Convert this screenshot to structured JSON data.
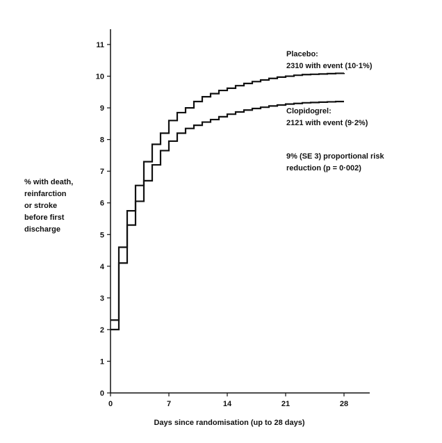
{
  "chart_data": {
    "type": "line",
    "title": "",
    "xlabel": "Days since randomisation (up to 28 days)",
    "ylabel": [
      "% with death,",
      "reinfarction",
      "or stroke",
      "before first",
      "discharge"
    ],
    "xlim": [
      0,
      30
    ],
    "ylim": [
      0,
      11.5
    ],
    "x_ticks": [
      0,
      7,
      14,
      21,
      28
    ],
    "y_ticks": [
      0,
      1,
      2,
      3,
      4,
      5,
      6,
      7,
      8,
      9,
      10,
      11
    ],
    "grid": false,
    "series": [
      {
        "name": "Placebo",
        "color": "#111111",
        "step": true,
        "x": [
          0,
          1,
          2,
          3,
          4,
          5,
          6,
          7,
          8,
          9,
          10,
          11,
          12,
          13,
          14,
          15,
          16,
          17,
          18,
          19,
          20,
          21,
          22,
          23,
          24,
          25,
          26,
          27,
          28
        ],
        "y": [
          2.3,
          4.6,
          5.75,
          6.55,
          7.3,
          7.85,
          8.2,
          8.6,
          8.85,
          9.0,
          9.2,
          9.35,
          9.45,
          9.55,
          9.62,
          9.7,
          9.77,
          9.83,
          9.88,
          9.93,
          9.97,
          10.0,
          10.03,
          10.05,
          10.06,
          10.07,
          10.08,
          10.09,
          10.1
        ]
      },
      {
        "name": "Clopidogrel",
        "color": "#111111",
        "step": true,
        "x": [
          0,
          1,
          2,
          3,
          4,
          5,
          6,
          7,
          8,
          9,
          10,
          11,
          12,
          13,
          14,
          15,
          16,
          17,
          18,
          19,
          20,
          21,
          22,
          23,
          24,
          25,
          26,
          27,
          28
        ],
        "y": [
          2.0,
          4.1,
          5.3,
          6.05,
          6.7,
          7.2,
          7.65,
          7.95,
          8.2,
          8.35,
          8.45,
          8.55,
          8.63,
          8.72,
          8.8,
          8.87,
          8.93,
          8.98,
          9.02,
          9.06,
          9.09,
          9.12,
          9.14,
          9.16,
          9.17,
          9.18,
          9.19,
          9.2,
          9.2
        ]
      }
    ],
    "annotations": [
      {
        "lines": [
          "Placebo:",
          "2310 with event (10·1%)"
        ]
      },
      {
        "lines": [
          "Clopidogrel:",
          "2121 with event (9·2%)"
        ]
      },
      {
        "lines": [
          "9% (SE 3) proportional risk",
          "reduction (p = 0·002)"
        ]
      }
    ]
  }
}
